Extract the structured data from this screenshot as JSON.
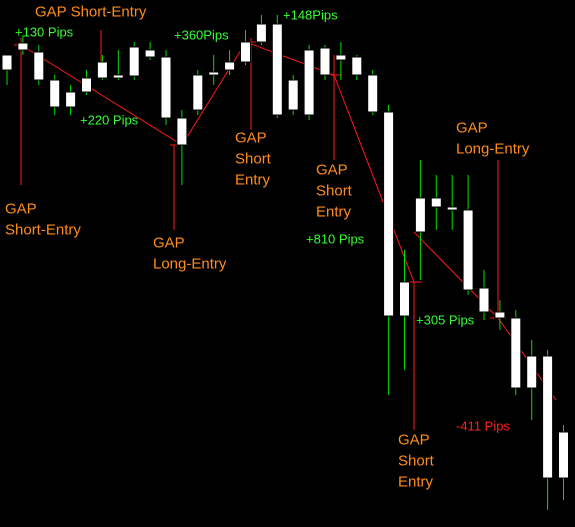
{
  "chart_data": {
    "type": "candlestick",
    "open": [
      472,
      484,
      475,
      447,
      435,
      449,
      465,
      452,
      480,
      477,
      470,
      409,
      452,
      455,
      465,
      485,
      503,
      503,
      447,
      477,
      479,
      472,
      470,
      452,
      415,
      245,
      329,
      329,
      320,
      317,
      239,
      215,
      209,
      171,
      171,
      95
    ],
    "close": [
      457,
      477,
      447,
      420,
      420,
      435,
      449,
      449,
      451,
      470,
      409,
      382,
      417,
      452,
      457,
      465,
      485,
      412,
      417,
      412,
      452,
      467,
      452,
      415,
      211,
      211,
      295,
      320,
      317,
      237,
      215,
      209,
      139,
      139,
      49,
      49
    ],
    "high": [
      472,
      492,
      482,
      452,
      442,
      457,
      472,
      477,
      485,
      485,
      477,
      417,
      457,
      472,
      477,
      497,
      512,
      512,
      452,
      482,
      482,
      485,
      472,
      457,
      422,
      277,
      367,
      352,
      352,
      352,
      257,
      227,
      217,
      187,
      177,
      102
    ],
    "low": [
      442,
      472,
      442,
      412,
      412,
      432,
      447,
      447,
      447,
      467,
      402,
      342,
      412,
      442,
      452,
      462,
      482,
      409,
      412,
      407,
      447,
      447,
      447,
      412,
      132,
      157,
      247,
      297,
      297,
      232,
      207,
      197,
      132,
      107,
      17,
      27
    ],
    "ylim": [
      0,
      527
    ],
    "color": "#ffffff",
    "wick_color": "#00e000",
    "trade_color": "#ff1a1a",
    "annotations": [
      {
        "lines": [
          "GAP Short-Entry"
        ],
        "color": "#ff8c1a"
      },
      {
        "lines": [
          "+130 Pips"
        ],
        "color": "#33ff33"
      },
      {
        "lines": [
          "+220 Pips"
        ],
        "color": "#33ff33"
      },
      {
        "lines": [
          "GAP",
          "Short-Entry"
        ],
        "color": "#ff8c1a"
      },
      {
        "lines": [
          "GAP",
          "Long-Entry"
        ],
        "color": "#ff8c1a"
      },
      {
        "lines": [
          "+360Pips"
        ],
        "color": "#33ff33"
      },
      {
        "lines": [
          "+148Pips"
        ],
        "color": "#33ff33"
      },
      {
        "lines": [
          "GAP",
          "Short",
          "Entry"
        ],
        "color": "#ff8c1a"
      },
      {
        "lines": [
          "GAP",
          "Short",
          "Entry"
        ],
        "color": "#ff8c1a"
      },
      {
        "lines": [
          "+810 Pips"
        ],
        "color": "#33ff33"
      },
      {
        "lines": [
          "+305 Pips"
        ],
        "color": "#33ff33"
      },
      {
        "lines": [
          "GAP",
          "Long-Entry"
        ],
        "color": "#ff8c1a"
      },
      {
        "lines": [
          "-411 Pips"
        ],
        "color": "#ff2020"
      },
      {
        "lines": [
          "GAP",
          "Short",
          "Entry"
        ],
        "color": "#ff8c1a"
      }
    ]
  }
}
